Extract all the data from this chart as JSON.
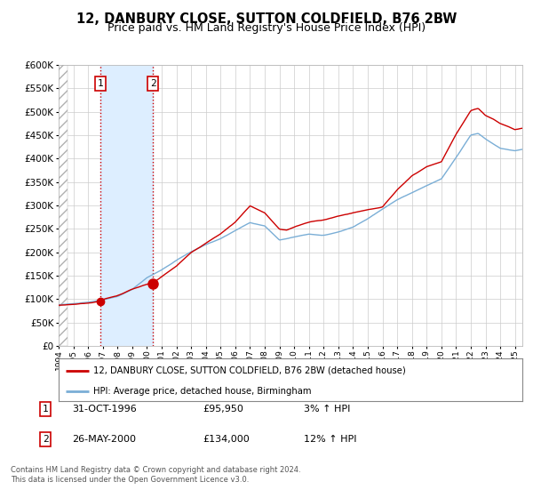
{
  "title": "12, DANBURY CLOSE, SUTTON COLDFIELD, B76 2BW",
  "subtitle": "Price paid vs. HM Land Registry's House Price Index (HPI)",
  "legend_line1": "12, DANBURY CLOSE, SUTTON COLDFIELD, B76 2BW (detached house)",
  "legend_line2": "HPI: Average price, detached house, Birmingham",
  "annotation1_label": "1",
  "annotation1_date": "31-OCT-1996",
  "annotation1_price": "£95,950",
  "annotation1_hpi": "3% ↑ HPI",
  "annotation2_label": "2",
  "annotation2_date": "26-MAY-2000",
  "annotation2_price": "£134,000",
  "annotation2_hpi": "12% ↑ HPI",
  "footer1": "Contains HM Land Registry data © Crown copyright and database right 2024.",
  "footer2": "This data is licensed under the Open Government Licence v3.0.",
  "sale1_year": 1996.83,
  "sale1_value": 95950,
  "sale2_year": 2000.4,
  "sale2_value": 134000,
  "xmin": 1994,
  "xmax": 2025.5,
  "ymin": 0,
  "ymax": 600000,
  "red_color": "#cc0000",
  "blue_color": "#7aaed6",
  "background_color": "#ffffff",
  "grid_color": "#cccccc",
  "shade_color": "#ddeeff",
  "title_fontsize": 10.5,
  "subtitle_fontsize": 9
}
